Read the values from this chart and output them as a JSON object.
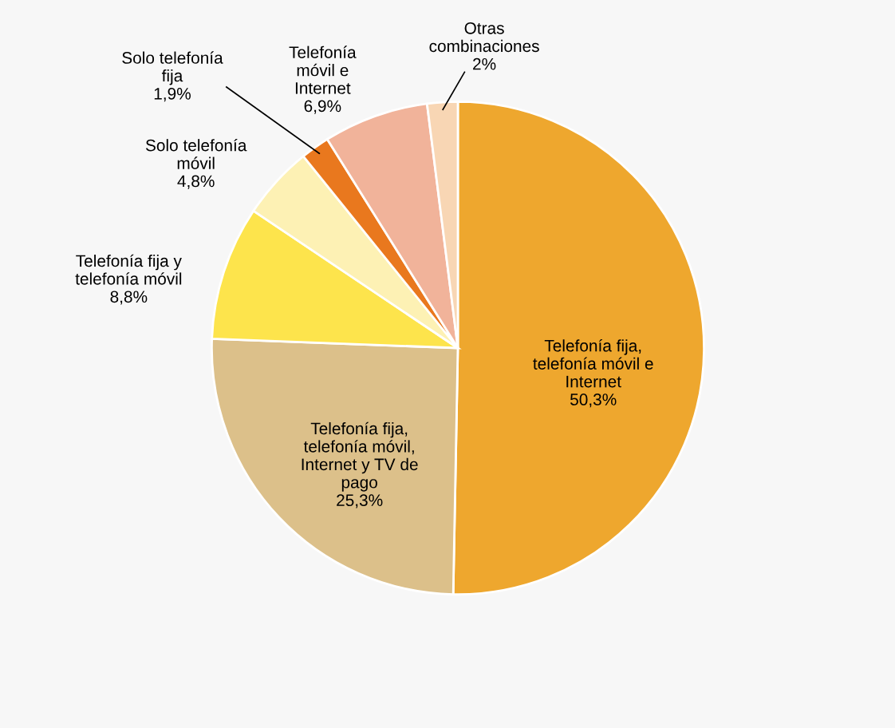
{
  "chart_data": {
    "type": "pie",
    "categories": [
      "Telefonía fija,\ntelefonía móvil e\nInternet",
      "Telefonía fija,\ntelefonía móvil,\nInternet y TV de\npago",
      "Telefonía fija y\ntelefonía móvil",
      "Solo telefonía\nmóvil",
      "Solo telefonía\nfija",
      "Telefonía\nmóvil e\nInternet",
      "Otras\ncombinaciones"
    ],
    "values": [
      50.3,
      25.3,
      8.8,
      4.8,
      1.9,
      6.9,
      2
    ],
    "value_labels": [
      "50,3%",
      "25,3%",
      "8,8%",
      "4,8%",
      "1,9%",
      "6,9%",
      "2%"
    ],
    "colors": [
      "#eea72e",
      "#dcc08a",
      "#fde44c",
      "#fdf1b4",
      "#e9781e",
      "#f1b39a",
      "#f8d6b4"
    ]
  }
}
